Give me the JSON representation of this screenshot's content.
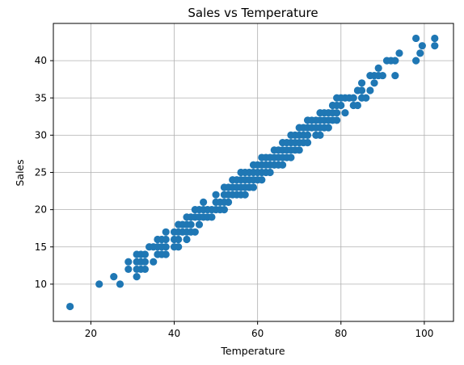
{
  "chart_data": {
    "type": "scatter",
    "title": "Sales vs Temperature",
    "xlabel": "Temperature",
    "ylabel": "Sales",
    "xlim": [
      11,
      107
    ],
    "ylim": [
      5,
      45
    ],
    "xticks": [
      20,
      40,
      60,
      80,
      100
    ],
    "yticks": [
      10,
      15,
      20,
      25,
      30,
      35,
      40
    ],
    "grid": true,
    "marker_color": "#1f77b4",
    "points": [
      [
        15,
        7
      ],
      [
        22,
        10
      ],
      [
        25.5,
        11
      ],
      [
        27,
        10
      ],
      [
        29,
        12
      ],
      [
        29,
        13
      ],
      [
        31,
        11
      ],
      [
        31,
        12
      ],
      [
        31,
        13
      ],
      [
        31,
        14
      ],
      [
        32,
        12
      ],
      [
        32,
        13
      ],
      [
        32,
        14
      ],
      [
        33,
        12
      ],
      [
        33,
        13
      ],
      [
        33,
        14
      ],
      [
        34,
        15
      ],
      [
        35,
        13
      ],
      [
        35,
        15
      ],
      [
        36,
        14
      ],
      [
        36,
        15
      ],
      [
        36,
        16
      ],
      [
        37,
        14
      ],
      [
        37,
        15
      ],
      [
        37,
        16
      ],
      [
        38,
        15
      ],
      [
        38,
        16
      ],
      [
        38,
        17
      ],
      [
        38,
        14
      ],
      [
        40,
        15
      ],
      [
        40,
        16
      ],
      [
        40,
        17
      ],
      [
        41,
        15
      ],
      [
        41,
        16
      ],
      [
        41,
        17
      ],
      [
        41,
        18
      ],
      [
        42,
        17
      ],
      [
        42,
        18
      ],
      [
        43,
        16
      ],
      [
        43,
        17
      ],
      [
        43,
        18
      ],
      [
        43,
        19
      ],
      [
        44,
        17
      ],
      [
        44,
        18
      ],
      [
        44,
        19
      ],
      [
        45,
        17
      ],
      [
        45,
        19
      ],
      [
        45,
        20
      ],
      [
        46,
        18
      ],
      [
        46,
        19
      ],
      [
        46,
        20
      ],
      [
        47,
        19
      ],
      [
        47,
        20
      ],
      [
        47,
        21
      ],
      [
        48,
        19
      ],
      [
        48,
        20
      ],
      [
        49,
        19
      ],
      [
        49,
        20
      ],
      [
        50,
        20
      ],
      [
        50,
        21
      ],
      [
        50,
        22
      ],
      [
        51,
        20
      ],
      [
        51,
        21
      ],
      [
        52,
        20
      ],
      [
        52,
        21
      ],
      [
        52,
        22
      ],
      [
        52,
        23
      ],
      [
        53,
        21
      ],
      [
        53,
        22
      ],
      [
        53,
        23
      ],
      [
        54,
        22
      ],
      [
        54,
        23
      ],
      [
        54,
        24
      ],
      [
        55,
        22
      ],
      [
        55,
        23
      ],
      [
        55,
        24
      ],
      [
        56,
        22
      ],
      [
        56,
        23
      ],
      [
        56,
        24
      ],
      [
        56,
        25
      ],
      [
        57,
        22
      ],
      [
        57,
        23
      ],
      [
        57,
        24
      ],
      [
        57,
        25
      ],
      [
        58,
        23
      ],
      [
        58,
        24
      ],
      [
        58,
        25
      ],
      [
        59,
        23
      ],
      [
        59,
        24
      ],
      [
        59,
        25
      ],
      [
        59,
        26
      ],
      [
        60,
        24
      ],
      [
        60,
        25
      ],
      [
        60,
        26
      ],
      [
        61,
        24
      ],
      [
        61,
        25
      ],
      [
        61,
        26
      ],
      [
        61,
        27
      ],
      [
        62,
        25
      ],
      [
        62,
        26
      ],
      [
        62,
        27
      ],
      [
        63,
        25
      ],
      [
        63,
        26
      ],
      [
        63,
        27
      ],
      [
        64,
        26
      ],
      [
        64,
        27
      ],
      [
        64,
        28
      ],
      [
        65,
        26
      ],
      [
        65,
        27
      ],
      [
        65,
        28
      ],
      [
        66,
        26
      ],
      [
        66,
        27
      ],
      [
        66,
        28
      ],
      [
        66,
        29
      ],
      [
        67,
        27
      ],
      [
        67,
        28
      ],
      [
        67,
        29
      ],
      [
        68,
        27
      ],
      [
        68,
        28
      ],
      [
        68,
        29
      ],
      [
        68,
        30
      ],
      [
        69,
        28
      ],
      [
        69,
        29
      ],
      [
        69,
        30
      ],
      [
        70,
        28
      ],
      [
        70,
        29
      ],
      [
        70,
        30
      ],
      [
        70,
        31
      ],
      [
        71,
        29
      ],
      [
        71,
        30
      ],
      [
        71,
        31
      ],
      [
        72,
        29
      ],
      [
        72,
        30
      ],
      [
        72,
        31
      ],
      [
        72,
        32
      ],
      [
        73,
        31
      ],
      [
        73,
        32
      ],
      [
        74,
        30
      ],
      [
        74,
        31
      ],
      [
        74,
        32
      ],
      [
        75,
        30
      ],
      [
        75,
        31
      ],
      [
        75,
        32
      ],
      [
        75,
        33
      ],
      [
        76,
        31
      ],
      [
        76,
        32
      ],
      [
        76,
        33
      ],
      [
        77,
        31
      ],
      [
        77,
        32
      ],
      [
        77,
        33
      ],
      [
        78,
        32
      ],
      [
        78,
        33
      ],
      [
        78,
        34
      ],
      [
        79,
        32
      ],
      [
        79,
        33
      ],
      [
        79,
        34
      ],
      [
        79,
        35
      ],
      [
        80,
        34
      ],
      [
        80,
        35
      ],
      [
        81,
        33
      ],
      [
        81,
        35
      ],
      [
        82,
        35
      ],
      [
        83,
        34
      ],
      [
        83,
        35
      ],
      [
        84,
        34
      ],
      [
        84,
        36
      ],
      [
        85,
        35
      ],
      [
        85,
        36
      ],
      [
        85,
        37
      ],
      [
        86,
        35
      ],
      [
        87,
        36
      ],
      [
        87,
        38
      ],
      [
        88,
        37
      ],
      [
        88,
        38
      ],
      [
        89,
        38
      ],
      [
        89,
        39
      ],
      [
        90,
        38
      ],
      [
        91,
        40
      ],
      [
        92,
        40
      ],
      [
        93,
        38
      ],
      [
        93,
        40
      ],
      [
        94,
        41
      ],
      [
        98,
        40
      ],
      [
        98,
        43
      ],
      [
        99,
        41
      ],
      [
        99.5,
        42
      ],
      [
        102.5,
        42
      ],
      [
        102.5,
        43
      ]
    ]
  }
}
